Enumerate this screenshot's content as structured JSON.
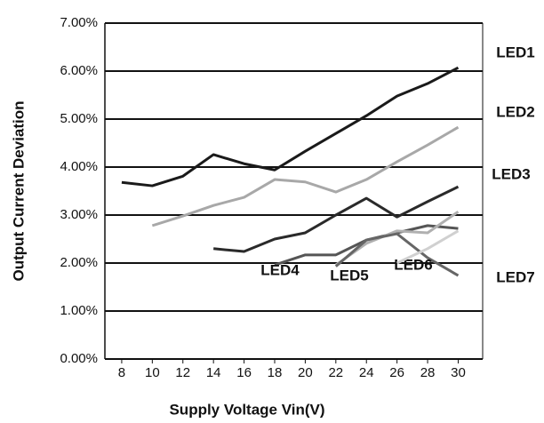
{
  "chart_data": {
    "type": "line",
    "xlabel": "Supply Voltage Vin(V)",
    "ylabel": "Output Current Deviation",
    "x": [
      8,
      10,
      12,
      14,
      16,
      18,
      20,
      22,
      24,
      26,
      28,
      30
    ],
    "xlim": [
      6.9,
      31.6
    ],
    "xticks": [
      8,
      10,
      12,
      14,
      16,
      18,
      20,
      22,
      24,
      26,
      28,
      30
    ],
    "ylim": [
      0,
      7
    ],
    "yticks": [
      {
        "value": 0,
        "label": "0.00%"
      },
      {
        "value": 1,
        "label": "1.00%"
      },
      {
        "value": 2,
        "label": "2.00%"
      },
      {
        "value": 3,
        "label": "3.00%"
      },
      {
        "value": 4,
        "label": "4.00%"
      },
      {
        "value": 5,
        "label": "5.00%"
      },
      {
        "value": 6,
        "label": "6.00%"
      },
      {
        "value": 7,
        "label": "7.00%"
      }
    ],
    "grid": true,
    "series": [
      {
        "name": "LED1",
        "color": "#1a1a1a",
        "values": [
          3.68,
          3.61,
          3.81,
          4.26,
          4.07,
          3.94,
          4.33,
          4.7,
          5.07,
          5.48,
          5.74,
          6.07
        ]
      },
      {
        "name": "LED2",
        "color": "#a8a8a8",
        "values": [
          null,
          2.78,
          2.98,
          3.2,
          3.37,
          3.74,
          3.69,
          3.48,
          3.74,
          4.11,
          4.46,
          4.83
        ]
      },
      {
        "name": "LED3",
        "color": "#2a2a2a",
        "values": [
          null,
          null,
          null,
          2.3,
          2.24,
          2.5,
          2.63,
          3.0,
          3.35,
          2.96,
          3.28,
          3.59
        ]
      },
      {
        "name": "LED4",
        "color": "#555555",
        "values": [
          null,
          null,
          null,
          null,
          null,
          1.96,
          2.17,
          2.17,
          2.48,
          2.63,
          2.78,
          2.72
        ]
      },
      {
        "name": "LED5",
        "color": "#b0b0b0",
        "values": [
          null,
          null,
          null,
          null,
          null,
          null,
          null,
          1.96,
          2.41,
          2.67,
          2.63,
          3.07
        ]
      },
      {
        "name": "LED6",
        "color": "#666666",
        "values": [
          null,
          null,
          null,
          null,
          null,
          null,
          null,
          1.93,
          2.48,
          2.61,
          2.11,
          1.74
        ]
      },
      {
        "name": "LED7",
        "color": "#d0d0d0",
        "values": [
          null,
          null,
          null,
          null,
          null,
          null,
          null,
          null,
          null,
          2.0,
          2.3,
          2.67
        ]
      }
    ]
  }
}
